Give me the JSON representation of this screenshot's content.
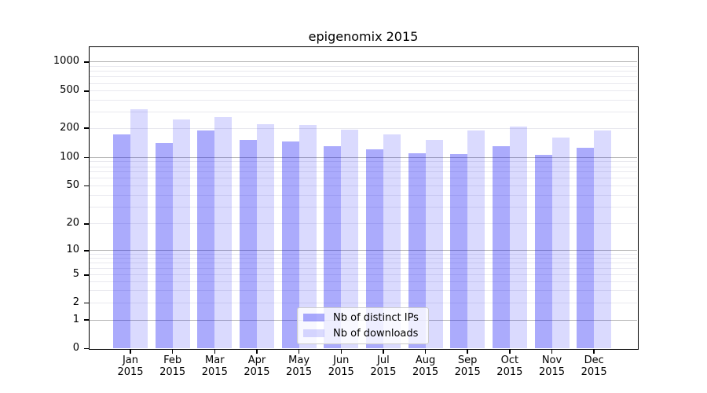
{
  "chart_data": {
    "type": "bar",
    "title": "epigenomix 2015",
    "y_scale": "log-with-zero-baseline",
    "grid": true,
    "legend_position": "lower center",
    "categories": [
      "Jan",
      "Feb",
      "Mar",
      "Apr",
      "May",
      "Jun",
      "Jul",
      "Aug",
      "Sep",
      "Oct",
      "Nov",
      "Dec"
    ],
    "category_year": "2015",
    "series": [
      {
        "name": "Nb of distinct IPs",
        "fill": "rgba(10,10,245,0.34)",
        "values": [
          173,
          141,
          190,
          152,
          146,
          132,
          122,
          111,
          108,
          130,
          106,
          127
        ]
      },
      {
        "name": "Nb of downloads",
        "fill": "rgba(10,10,245,0.15)",
        "values": [
          318,
          247,
          265,
          221,
          215,
          194,
          172,
          153,
          190,
          210,
          160,
          189
        ]
      }
    ],
    "y_ticks": [
      0,
      1,
      2,
      5,
      10,
      20,
      50,
      100,
      200,
      500,
      1000
    ],
    "major_grid_values": [
      1,
      10,
      100,
      1000
    ],
    "ylim": [
      0,
      1400
    ]
  },
  "colors": {
    "major_grid": "#b3b3b3",
    "minor_grid": "#e9e9ef",
    "axis": "#000000",
    "legend_border": "#cccccc",
    "legend_bg": "rgba(255,255,255,0.8)"
  }
}
